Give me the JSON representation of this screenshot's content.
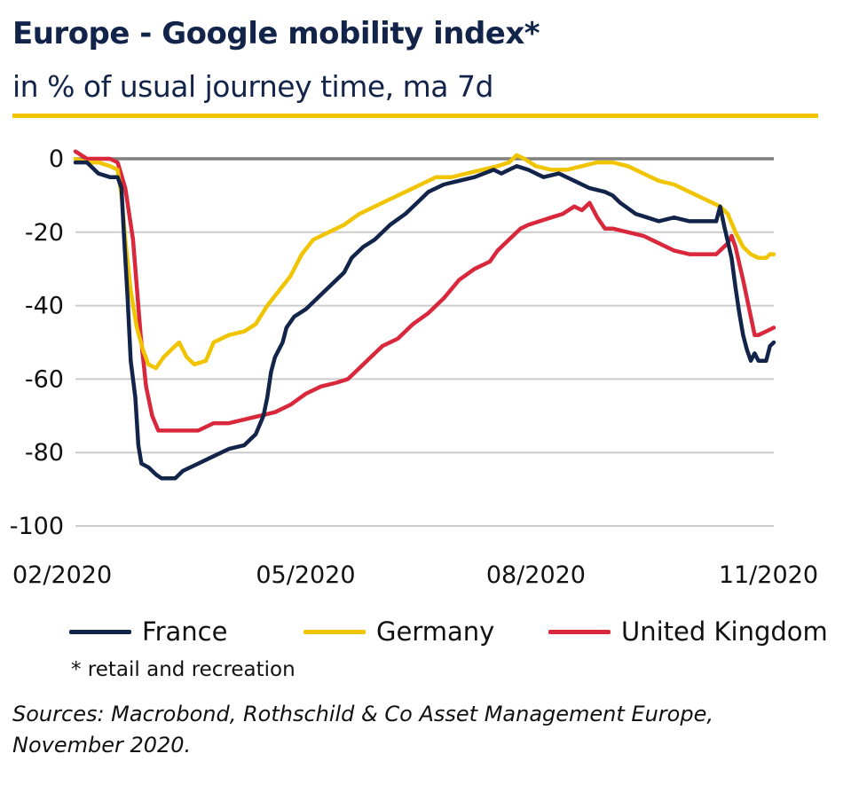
{
  "header": {
    "title": "Europe - Google mobility index*",
    "subtitle": "in % of usual journey time, ma 7d"
  },
  "footnote": "* retail and recreation",
  "sources": "Sources: Macrobond, Rothschild & Co Asset Management Europe, November 2020.",
  "colors": {
    "accent_rule": "#f1c400",
    "zero_line": "#7f7f7f",
    "grid": "#cccccc"
  },
  "chart_data": {
    "type": "line",
    "x_unit": "month index (0 = 02/2020)",
    "xlim": [
      0,
      9.1
    ],
    "ylim": [
      -100,
      2
    ],
    "yticks": [
      0,
      -20,
      -40,
      -60,
      -80,
      -100
    ],
    "ytick_labels": [
      "0",
      "-20",
      "-40",
      "-60",
      "-80",
      "-100"
    ],
    "xticks": [
      0,
      3,
      6,
      9
    ],
    "xtick_labels": [
      "02/2020",
      "05/2020",
      "08/2020",
      "11/2020"
    ],
    "grid": true,
    "legend_position": "bottom",
    "series": [
      {
        "name": "France",
        "color": "#13244a",
        "points": [
          [
            0.0,
            -1
          ],
          [
            0.15,
            -1
          ],
          [
            0.3,
            -4
          ],
          [
            0.45,
            -5
          ],
          [
            0.55,
            -5
          ],
          [
            0.6,
            -8
          ],
          [
            0.63,
            -20
          ],
          [
            0.68,
            -38
          ],
          [
            0.72,
            -55
          ],
          [
            0.78,
            -65
          ],
          [
            0.82,
            -78
          ],
          [
            0.86,
            -83
          ],
          [
            0.95,
            -84
          ],
          [
            1.05,
            -86
          ],
          [
            1.12,
            -87
          ],
          [
            1.3,
            -87
          ],
          [
            1.4,
            -85
          ],
          [
            1.6,
            -83
          ],
          [
            1.8,
            -81
          ],
          [
            2.0,
            -79
          ],
          [
            2.2,
            -78
          ],
          [
            2.35,
            -75
          ],
          [
            2.45,
            -70
          ],
          [
            2.5,
            -65
          ],
          [
            2.55,
            -58
          ],
          [
            2.6,
            -54
          ],
          [
            2.7,
            -50
          ],
          [
            2.75,
            -46
          ],
          [
            2.85,
            -43
          ],
          [
            3.0,
            -41
          ],
          [
            3.1,
            -39
          ],
          [
            3.3,
            -35
          ],
          [
            3.5,
            -31
          ],
          [
            3.6,
            -27
          ],
          [
            3.75,
            -24
          ],
          [
            3.9,
            -22
          ],
          [
            4.1,
            -18
          ],
          [
            4.3,
            -15
          ],
          [
            4.45,
            -12
          ],
          [
            4.6,
            -9
          ],
          [
            4.8,
            -7
          ],
          [
            5.0,
            -6
          ],
          [
            5.2,
            -5
          ],
          [
            5.45,
            -3
          ],
          [
            5.55,
            -4
          ],
          [
            5.65,
            -3
          ],
          [
            5.75,
            -2
          ],
          [
            5.9,
            -3
          ],
          [
            6.1,
            -5
          ],
          [
            6.3,
            -4
          ],
          [
            6.5,
            -6
          ],
          [
            6.7,
            -8
          ],
          [
            6.9,
            -9
          ],
          [
            7.0,
            -10
          ],
          [
            7.1,
            -12
          ],
          [
            7.3,
            -15
          ],
          [
            7.45,
            -16
          ],
          [
            7.6,
            -17
          ],
          [
            7.8,
            -16
          ],
          [
            8.0,
            -17
          ],
          [
            8.2,
            -17
          ],
          [
            8.35,
            -17
          ],
          [
            8.4,
            -13
          ],
          [
            8.45,
            -18
          ],
          [
            8.55,
            -27
          ],
          [
            8.6,
            -35
          ],
          [
            8.65,
            -42
          ],
          [
            8.7,
            -48
          ],
          [
            8.75,
            -52
          ],
          [
            8.8,
            -55
          ],
          [
            8.85,
            -53
          ],
          [
            8.9,
            -55
          ],
          [
            9.0,
            -55
          ],
          [
            9.05,
            -51
          ],
          [
            9.1,
            -50
          ]
        ]
      },
      {
        "name": "Germany",
        "color": "#f1c400",
        "points": [
          [
            0.0,
            0
          ],
          [
            0.15,
            -1
          ],
          [
            0.3,
            -1
          ],
          [
            0.45,
            -2
          ],
          [
            0.55,
            -3
          ],
          [
            0.6,
            -10
          ],
          [
            0.65,
            -22
          ],
          [
            0.72,
            -36
          ],
          [
            0.8,
            -46
          ],
          [
            0.88,
            -52
          ],
          [
            0.95,
            -56
          ],
          [
            1.05,
            -57
          ],
          [
            1.15,
            -54
          ],
          [
            1.25,
            -52
          ],
          [
            1.35,
            -50
          ],
          [
            1.45,
            -54
          ],
          [
            1.55,
            -56
          ],
          [
            1.7,
            -55
          ],
          [
            1.8,
            -50
          ],
          [
            2.0,
            -48
          ],
          [
            2.2,
            -47
          ],
          [
            2.35,
            -45
          ],
          [
            2.5,
            -40
          ],
          [
            2.65,
            -36
          ],
          [
            2.8,
            -32
          ],
          [
            2.95,
            -26
          ],
          [
            3.1,
            -22
          ],
          [
            3.3,
            -20
          ],
          [
            3.5,
            -18
          ],
          [
            3.7,
            -15
          ],
          [
            3.9,
            -13
          ],
          [
            4.1,
            -11
          ],
          [
            4.3,
            -9
          ],
          [
            4.5,
            -7
          ],
          [
            4.7,
            -5
          ],
          [
            4.9,
            -5
          ],
          [
            5.1,
            -4
          ],
          [
            5.3,
            -3
          ],
          [
            5.5,
            -2
          ],
          [
            5.65,
            -1
          ],
          [
            5.75,
            1
          ],
          [
            5.85,
            0
          ],
          [
            6.0,
            -2
          ],
          [
            6.2,
            -3
          ],
          [
            6.4,
            -3
          ],
          [
            6.6,
            -2
          ],
          [
            6.8,
            -1
          ],
          [
            7.0,
            -1
          ],
          [
            7.2,
            -2
          ],
          [
            7.4,
            -4
          ],
          [
            7.6,
            -6
          ],
          [
            7.8,
            -7
          ],
          [
            8.0,
            -9
          ],
          [
            8.2,
            -11
          ],
          [
            8.4,
            -13
          ],
          [
            8.5,
            -15
          ],
          [
            8.6,
            -20
          ],
          [
            8.7,
            -24
          ],
          [
            8.8,
            -26
          ],
          [
            8.9,
            -27
          ],
          [
            9.0,
            -27
          ],
          [
            9.05,
            -26
          ],
          [
            9.1,
            -26
          ]
        ]
      },
      {
        "name": "United Kingdom",
        "color": "#d9273b",
        "points": [
          [
            0.0,
            2
          ],
          [
            0.15,
            0
          ],
          [
            0.3,
            0
          ],
          [
            0.45,
            0
          ],
          [
            0.55,
            -1
          ],
          [
            0.65,
            -8
          ],
          [
            0.75,
            -22
          ],
          [
            0.85,
            -48
          ],
          [
            0.92,
            -62
          ],
          [
            1.0,
            -70
          ],
          [
            1.08,
            -74
          ],
          [
            1.2,
            -74
          ],
          [
            1.4,
            -74
          ],
          [
            1.6,
            -74
          ],
          [
            1.8,
            -72
          ],
          [
            2.0,
            -72
          ],
          [
            2.2,
            -71
          ],
          [
            2.4,
            -70
          ],
          [
            2.6,
            -69
          ],
          [
            2.8,
            -67
          ],
          [
            3.0,
            -64
          ],
          [
            3.2,
            -62
          ],
          [
            3.4,
            -61
          ],
          [
            3.55,
            -60
          ],
          [
            3.65,
            -58
          ],
          [
            3.8,
            -55
          ],
          [
            4.0,
            -51
          ],
          [
            4.2,
            -49
          ],
          [
            4.4,
            -45
          ],
          [
            4.6,
            -42
          ],
          [
            4.8,
            -38
          ],
          [
            5.0,
            -33
          ],
          [
            5.2,
            -30
          ],
          [
            5.4,
            -28
          ],
          [
            5.5,
            -25
          ],
          [
            5.65,
            -22
          ],
          [
            5.8,
            -19
          ],
          [
            5.9,
            -18
          ],
          [
            6.05,
            -17
          ],
          [
            6.2,
            -16
          ],
          [
            6.35,
            -15
          ],
          [
            6.5,
            -13
          ],
          [
            6.6,
            -14
          ],
          [
            6.7,
            -12
          ],
          [
            6.8,
            -16
          ],
          [
            6.9,
            -19
          ],
          [
            7.0,
            -19
          ],
          [
            7.2,
            -20
          ],
          [
            7.4,
            -21
          ],
          [
            7.6,
            -23
          ],
          [
            7.8,
            -25
          ],
          [
            8.0,
            -26
          ],
          [
            8.2,
            -26
          ],
          [
            8.35,
            -26
          ],
          [
            8.5,
            -23
          ],
          [
            8.55,
            -21
          ],
          [
            8.6,
            -24
          ],
          [
            8.7,
            -33
          ],
          [
            8.8,
            -43
          ],
          [
            8.85,
            -48
          ],
          [
            8.9,
            -48
          ],
          [
            9.0,
            -47
          ],
          [
            9.1,
            -46
          ]
        ]
      }
    ]
  }
}
